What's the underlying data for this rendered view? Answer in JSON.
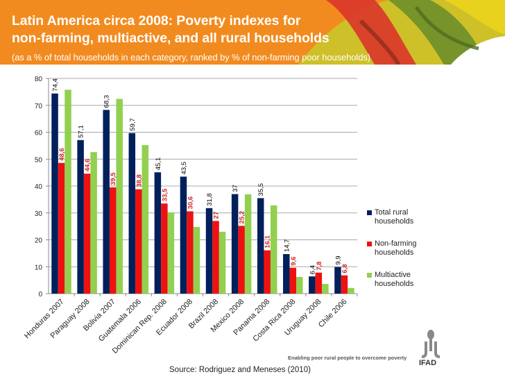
{
  "header": {
    "title_line1": "Latin America circa 2008: Poverty indexes for",
    "title_line2": "non-farming, multiactive, and all rural households",
    "subtitle": "(as a % of total households in each category, ranked by % of non-farming poor households)"
  },
  "footer": {
    "source": "Source: Rodriguez and Meneses (2010)",
    "tagline": "Enabling poor rural people to overcome poverty",
    "logo_text": "IFAD"
  },
  "colors": {
    "total": "#00205b",
    "nonfarming": "#ee1111",
    "multiactive": "#92d050",
    "label_total": "#000000",
    "label_nonfarming": "#cc2222",
    "banner": "#f28b1f"
  },
  "chart_data": {
    "type": "bar",
    "title": "Latin America circa 2008: Poverty indexes for non-farming, multiactive, and all rural households",
    "subtitle": "(as a % of total households in each category, ranked by % of non-farming poor households)",
    "xlabel": "",
    "ylabel": "",
    "ylim": [
      0,
      80
    ],
    "yticks": [
      0,
      10,
      20,
      30,
      40,
      50,
      60,
      70,
      80
    ],
    "grid": true,
    "legend_position": "right",
    "categories": [
      "Honduras 2007",
      "Paraguay 2008",
      "Bolivia 2007",
      "Guatemala 2006",
      "Dominican Rep. 2008",
      "Ecuador 2008",
      "Brazil 2008",
      "Mexico 2008",
      "Panama 2008",
      "Costa Rica 2008",
      "Uruguay 2008",
      "Chile 2006"
    ],
    "series": [
      {
        "name": "Total rural households",
        "values": [
          74.4,
          57.1,
          68.3,
          59.7,
          45.1,
          43.5,
          31.8,
          37,
          35.5,
          14.7,
          6.4,
          9.9
        ],
        "labels": [
          "74,4",
          "57,1",
          "68,3",
          "59,7",
          "45,1",
          "43,5",
          "31,8",
          "37",
          "35,5",
          "14,7",
          "6,4",
          "9,9"
        ]
      },
      {
        "name": "Non-farming households",
        "values": [
          48.6,
          44.6,
          39.5,
          38.8,
          33.5,
          30.6,
          27,
          25.2,
          16.1,
          9.6,
          7.8,
          6.8
        ],
        "labels": [
          "48,6",
          "44,6",
          "39,5",
          "38,8",
          "33,5",
          "30,6",
          "27",
          "25,2",
          "16,1",
          "9,6",
          "7,8",
          "6,8"
        ]
      },
      {
        "name": "Multiactive households",
        "values": [
          75.8,
          52.6,
          72.4,
          55.2,
          30.2,
          24.8,
          23.0,
          36.9,
          32.8,
          6.2,
          3.6,
          2.1
        ],
        "labels": null
      }
    ]
  }
}
